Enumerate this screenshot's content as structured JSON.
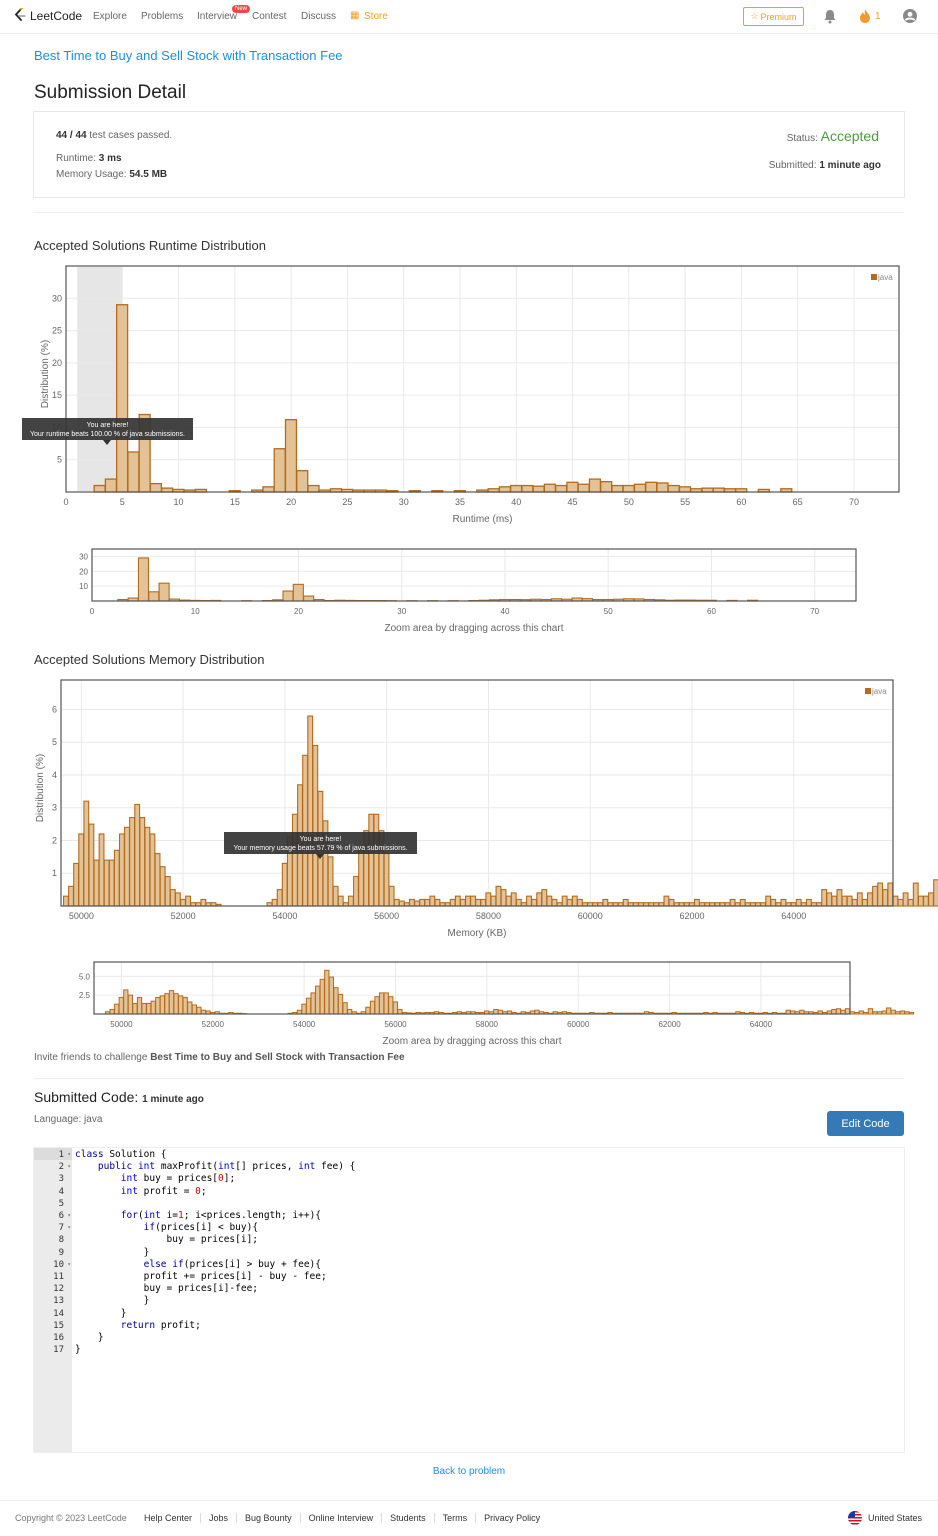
{
  "nav": {
    "logo_text": "LeetCode",
    "links": [
      {
        "label": "Explore",
        "x": 93
      },
      {
        "label": "Problems",
        "x": 141
      },
      {
        "label": "Interview",
        "x": 197
      },
      {
        "label": "Contest",
        "x": 252
      },
      {
        "label": "Discuss",
        "x": 301
      },
      {
        "label": "Store",
        "x": 364
      }
    ],
    "new_badge": "New",
    "premium": "Premium",
    "fire_count": "1"
  },
  "problem_title": "Best Time to Buy and Sell Stock with Transaction Fee",
  "page_title": "Submission Detail",
  "summary": {
    "cases": "44 / 44",
    "cases_suffix": " test cases passed.",
    "runtime_label": "Runtime: ",
    "runtime_value": "3 ms",
    "memory_label": "Memory Usage: ",
    "memory_value": "54.5 MB",
    "status_label": "Status: ",
    "status_value": "Accepted",
    "submitted_label": "Submitted: ",
    "submitted_value": "1 minute ago"
  },
  "runtime_section_title": "Accepted Solutions Runtime Distribution",
  "memory_section_title": "Accepted Solutions Memory Distribution",
  "zoom_hint": "Zoom area by dragging across this chart",
  "chart_data": [
    {
      "type": "bar",
      "title": "Accepted Solutions Runtime Distribution",
      "xlabel": "Runtime (ms)",
      "ylabel": "Distribution (%)",
      "xlim": [
        0,
        74
      ],
      "ylim": [
        0,
        35
      ],
      "xticks": [
        0,
        5,
        10,
        15,
        20,
        25,
        30,
        35,
        40,
        45,
        50,
        55,
        60,
        65,
        70
      ],
      "yticks": [
        5,
        10,
        15,
        20,
        25,
        30
      ],
      "legend": "java",
      "highlight_range": [
        1,
        5
      ],
      "tooltip": {
        "line1": "You are here!",
        "line2": "Your runtime beats 100.00 % of java submissions."
      },
      "series": [
        {
          "name": "java",
          "x": [
            3,
            4,
            5,
            6,
            7,
            8,
            9,
            10,
            11,
            12,
            15,
            17,
            18,
            19,
            20,
            21,
            22,
            23,
            24,
            25,
            26,
            27,
            28,
            29,
            31,
            33,
            35,
            37,
            38,
            39,
            40,
            41,
            42,
            43,
            44,
            45,
            46,
            47,
            48,
            49,
            50,
            51,
            52,
            53,
            54,
            55,
            56,
            57,
            58,
            59,
            60,
            62,
            64
          ],
          "values": [
            1,
            2,
            29,
            6.2,
            12,
            1.3,
            0.6,
            0.4,
            0.3,
            0.4,
            0.2,
            0.3,
            0.8,
            6.7,
            11.2,
            3.3,
            1,
            0.3,
            0.5,
            0.4,
            0.3,
            0.3,
            0.3,
            0.2,
            0.2,
            0.2,
            0.2,
            0.3,
            0.5,
            0.8,
            1,
            1,
            0.9,
            1.2,
            1,
            1.5,
            1.2,
            2,
            1.6,
            1,
            1,
            1.2,
            1.5,
            1.4,
            1,
            0.8,
            0.5,
            0.6,
            0.6,
            0.5,
            0.5,
            0.4,
            0.5
          ]
        }
      ]
    },
    {
      "type": "bar",
      "title": "",
      "xlabel": "",
      "ylabel": "",
      "xlim": [
        0,
        74
      ],
      "ylim": [
        0,
        35
      ],
      "xticks": [
        0,
        10,
        20,
        30,
        40,
        50,
        60,
        70
      ],
      "yticks": [
        10,
        20,
        30
      ],
      "legend": "",
      "series": [
        {
          "name": "java",
          "x": [
            3,
            4,
            5,
            6,
            7,
            8,
            9,
            10,
            11,
            12,
            15,
            17,
            18,
            19,
            20,
            21,
            22,
            23,
            24,
            25,
            26,
            27,
            28,
            29,
            31,
            33,
            35,
            37,
            38,
            39,
            40,
            41,
            42,
            43,
            44,
            45,
            46,
            47,
            48,
            49,
            50,
            51,
            52,
            53,
            54,
            55,
            56,
            57,
            58,
            59,
            60,
            62,
            64
          ],
          "values": [
            1,
            2,
            29,
            6.2,
            12,
            1.3,
            0.6,
            0.4,
            0.3,
            0.4,
            0.2,
            0.3,
            0.8,
            6.7,
            11.2,
            3.3,
            1,
            0.3,
            0.5,
            0.4,
            0.3,
            0.3,
            0.3,
            0.2,
            0.2,
            0.2,
            0.2,
            0.3,
            0.5,
            0.8,
            1,
            1,
            0.9,
            1.2,
            1,
            1.5,
            1.2,
            2,
            1.6,
            1,
            1,
            1.2,
            1.5,
            1.4,
            1,
            0.8,
            0.5,
            0.6,
            0.6,
            0.5,
            0.5,
            0.4,
            0.5
          ]
        }
      ]
    },
    {
      "type": "bar",
      "title": "Accepted Solutions Memory Distribution",
      "xlabel": "Memory (KB)",
      "ylabel": "Distribution (%)",
      "xlim": [
        49600,
        65950
      ],
      "ylim": [
        0,
        6.9
      ],
      "xticks": [
        50000,
        52000,
        54000,
        56000,
        58000,
        60000,
        62000,
        64000
      ],
      "yticks": [
        1,
        2,
        3,
        4,
        5,
        6
      ],
      "legend": "java",
      "tooltip": {
        "line1": "You are here!",
        "line2": "Your memory usage beats 57.79 % of java submissions."
      },
      "series": [
        {
          "name": "java",
          "x0": 49700,
          "step": 100,
          "values": [
            0.3,
            0.6,
            1.3,
            2.2,
            3.2,
            2.5,
            1.4,
            2.2,
            1.4,
            1.4,
            1.7,
            2.2,
            2.4,
            2.7,
            3.1,
            2.7,
            2.4,
            2.2,
            1.6,
            1.2,
            0.9,
            0.5,
            0.4,
            0.2,
            0.3,
            0.1,
            0.1,
            0.2,
            0.1,
            0.1,
            0.05,
            0,
            0,
            0,
            0,
            0,
            0,
            0,
            0,
            0,
            0.1,
            0.2,
            0.5,
            1.3,
            2.1,
            2.8,
            3.7,
            4.6,
            5.8,
            4.9,
            3.5,
            2.6,
            1.5,
            0.6,
            0.3,
            0.1,
            0.3,
            0.9,
            1.7,
            2.3,
            2.8,
            2.8,
            2.3,
            1.6,
            0.6,
            0.2,
            0.15,
            0.1,
            0.2,
            0.15,
            0.2,
            0.2,
            0.3,
            0.2,
            0.1,
            0.1,
            0.2,
            0.3,
            0.2,
            0.3,
            0.3,
            0.2,
            0.2,
            0.4,
            0.3,
            0.6,
            0.5,
            0.3,
            0.4,
            0.2,
            0.1,
            0.3,
            0.2,
            0.4,
            0.5,
            0.3,
            0.2,
            0.1,
            0.3,
            0.2,
            0.3,
            0.2,
            0.1,
            0.1,
            0.1,
            0.1,
            0.2,
            0.1,
            0.1,
            0.1,
            0.2,
            0.1,
            0.1,
            0.1,
            0.1,
            0.1,
            0.1,
            0.1,
            0.3,
            0.2,
            0.1,
            0.1,
            0.1,
            0.1,
            0.2,
            0.1,
            0.1,
            0.1,
            0.1,
            0.1,
            0.1,
            0.2,
            0.1,
            0.2,
            0.1,
            0.1,
            0.1,
            0.1,
            0.3,
            0.2,
            0.1,
            0.2,
            0.1,
            0.1,
            0.2,
            0.1,
            0.2,
            0.1,
            0.1,
            0.5,
            0.4,
            0.3,
            0.5,
            0.3,
            0.3,
            0.2,
            0.4,
            0.2,
            0.4,
            0.6,
            0.7,
            0.5,
            0.7,
            0.3,
            0.2,
            0.4,
            0.2,
            0.7,
            0.3,
            0.3,
            0.4,
            0.8,
            0.5,
            0.3,
            0.4,
            0.3,
            0.2
          ]
        }
      ]
    },
    {
      "type": "bar",
      "title": "",
      "xlabel": "",
      "ylabel": "",
      "xlim": [
        49400,
        65950
      ],
      "ylim": [
        0,
        6.9
      ],
      "xticks": [
        50000,
        52000,
        54000,
        56000,
        58000,
        60000,
        62000,
        64000
      ],
      "yticks": [
        2.5,
        5.0
      ],
      "ytick_labels": [
        "2.5",
        "5.0"
      ],
      "legend": "",
      "series": [
        {
          "name": "java",
          "x0": 49700,
          "step": 100,
          "values": [
            0.3,
            0.6,
            1.3,
            2.2,
            3.2,
            2.5,
            1.4,
            2.2,
            1.4,
            1.4,
            1.7,
            2.2,
            2.4,
            2.7,
            3.1,
            2.7,
            2.4,
            2.2,
            1.6,
            1.2,
            0.9,
            0.5,
            0.4,
            0.2,
            0.3,
            0.1,
            0.1,
            0.2,
            0.1,
            0.1,
            0.05,
            0,
            0,
            0,
            0,
            0,
            0,
            0,
            0,
            0,
            0.1,
            0.2,
            0.5,
            1.3,
            2.1,
            2.8,
            3.7,
            4.6,
            5.8,
            4.9,
            3.5,
            2.6,
            1.5,
            0.6,
            0.3,
            0.1,
            0.3,
            0.9,
            1.7,
            2.3,
            2.8,
            2.8,
            2.3,
            1.6,
            0.6,
            0.2,
            0.15,
            0.1,
            0.2,
            0.15,
            0.2,
            0.2,
            0.3,
            0.2,
            0.1,
            0.1,
            0.2,
            0.3,
            0.2,
            0.3,
            0.3,
            0.2,
            0.2,
            0.4,
            0.3,
            0.6,
            0.5,
            0.3,
            0.4,
            0.2,
            0.1,
            0.3,
            0.2,
            0.4,
            0.5,
            0.3,
            0.2,
            0.1,
            0.3,
            0.2,
            0.3,
            0.2,
            0.1,
            0.1,
            0.1,
            0.1,
            0.2,
            0.1,
            0.1,
            0.1,
            0.2,
            0.1,
            0.1,
            0.1,
            0.1,
            0.1,
            0.1,
            0.1,
            0.3,
            0.2,
            0.1,
            0.1,
            0.1,
            0.1,
            0.2,
            0.1,
            0.1,
            0.1,
            0.1,
            0.1,
            0.1,
            0.2,
            0.1,
            0.2,
            0.1,
            0.1,
            0.1,
            0.1,
            0.3,
            0.2,
            0.1,
            0.2,
            0.1,
            0.1,
            0.2,
            0.1,
            0.2,
            0.1,
            0.1,
            0.5,
            0.4,
            0.3,
            0.5,
            0.3,
            0.3,
            0.2,
            0.4,
            0.2,
            0.4,
            0.6,
            0.7,
            0.5,
            0.7,
            0.3,
            0.2,
            0.4,
            0.2,
            0.7,
            0.3,
            0.3,
            0.4,
            0.8,
            0.5,
            0.3,
            0.4,
            0.3,
            0.2
          ]
        }
      ]
    }
  ],
  "invite": {
    "prefix": "Invite friends to challenge ",
    "problem": "Best Time to Buy and Sell Stock with Transaction Fee"
  },
  "submitted_code": {
    "label": "Submitted Code: ",
    "time": "1 minute ago",
    "language": "Language: java",
    "edit_button": "Edit Code"
  },
  "code_lines": [
    {
      "n": "1",
      "fold": true,
      "text": "class Solution {"
    },
    {
      "n": "2",
      "fold": true,
      "text": "    public int maxProfit(int[] prices, int fee) {"
    },
    {
      "n": "3",
      "fold": false,
      "text": "        int buy = prices[0];"
    },
    {
      "n": "4",
      "fold": false,
      "text": "        int profit = 0;"
    },
    {
      "n": "5",
      "fold": false,
      "text": ""
    },
    {
      "n": "6",
      "fold": true,
      "text": "        for(int i=1; i<prices.length; i++){"
    },
    {
      "n": "7",
      "fold": true,
      "text": "            if(prices[i] < buy){"
    },
    {
      "n": "8",
      "fold": false,
      "text": "                buy = prices[i];"
    },
    {
      "n": "9",
      "fold": false,
      "text": "            }"
    },
    {
      "n": "10",
      "fold": true,
      "text": "            else if(prices[i] > buy + fee){"
    },
    {
      "n": "11",
      "fold": false,
      "text": "            profit += prices[i] - buy - fee;"
    },
    {
      "n": "12",
      "fold": false,
      "text": "            buy = prices[i]-fee;"
    },
    {
      "n": "13",
      "fold": false,
      "text": "            }"
    },
    {
      "n": "14",
      "fold": false,
      "text": "        }"
    },
    {
      "n": "15",
      "fold": false,
      "text": "        return profit;"
    },
    {
      "n": "16",
      "fold": false,
      "text": "    }"
    },
    {
      "n": "17",
      "fold": false,
      "text": "}"
    }
  ],
  "back_link": "Back to problem",
  "footer": {
    "copyright": "Copyright © 2023 LeetCode",
    "links": [
      "Help Center",
      "Jobs",
      "Bug Bounty",
      "Online Interview",
      "Students",
      "Terms",
      "Privacy Policy"
    ],
    "country": "United States"
  },
  "colors": {
    "accent": "#1a90e0",
    "bar_fill": "#e3c396",
    "bar_stroke": "#b36b1e",
    "accepted": "#4c9c3c",
    "button": "#337ab7",
    "premium": "#f0a020"
  }
}
